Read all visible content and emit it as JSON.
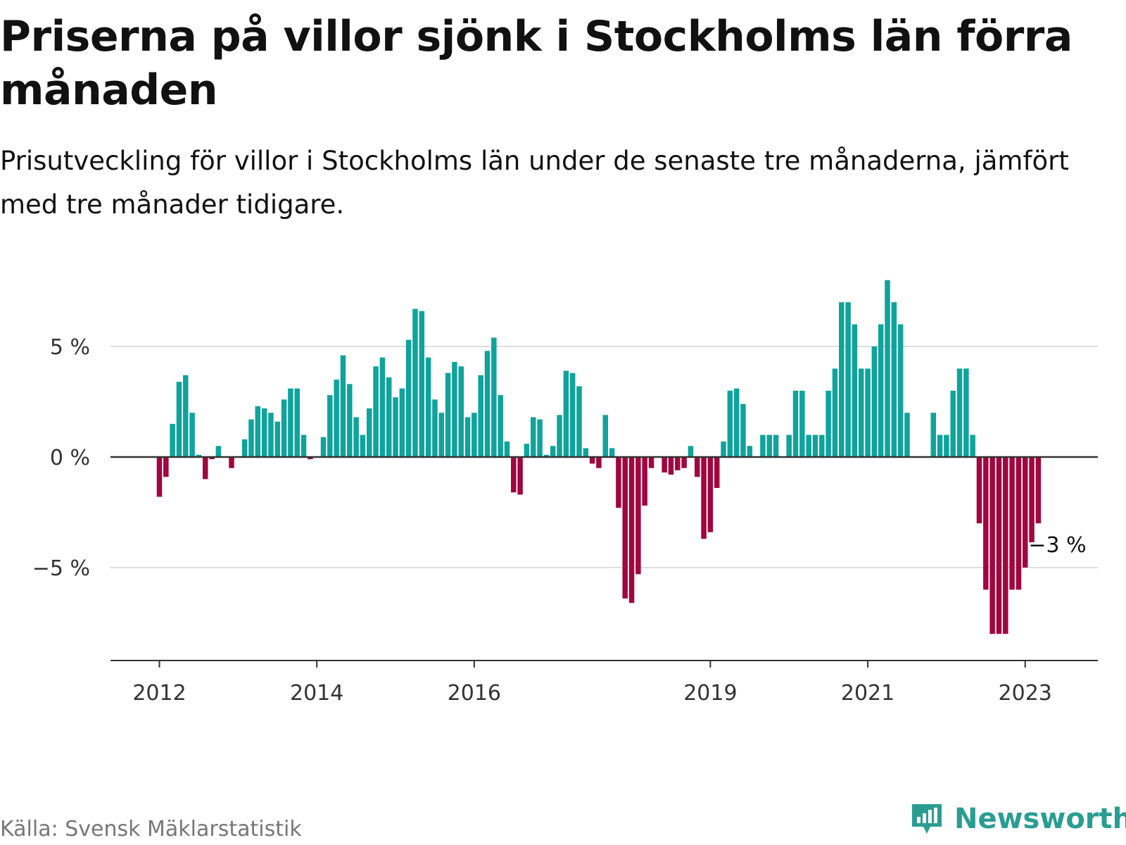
{
  "title": "Priserna på villor sjönk i Stockholms län förra månaden",
  "subtitle": "Prisutveckling för villor i Stockholms län under de senaste tre månaderna, jämfört med tre månader tidigare.",
  "source": "Källa: Svensk Mäklarstatistik",
  "brand": "Newsworthy",
  "colors": {
    "positive": "#0fa39b",
    "negative": "#a0063f",
    "grid": "#dddddd",
    "axis": "#333333",
    "brand": "#2a9d93"
  },
  "chart_data": {
    "type": "bar",
    "title": "Priserna på villor sjönk i Stockholms län förra månaden",
    "x_start": "2012-01",
    "xticks": [
      {
        "date": "2012-01",
        "label": "2012"
      },
      {
        "date": "2014-01",
        "label": "2014"
      },
      {
        "date": "2016-01",
        "label": "2016"
      },
      {
        "date": "2019-01",
        "label": "2019"
      },
      {
        "date": "2021-01",
        "label": "2021"
      },
      {
        "date": "2023-01",
        "label": "2023"
      }
    ],
    "yticks": [
      {
        "value": 5,
        "label": "5 %"
      },
      {
        "value": 0,
        "label": "0 %"
      },
      {
        "value": -5,
        "label": "−5 %"
      }
    ],
    "ylim": [
      -9.3,
      8.6
    ],
    "grid": true,
    "annotation": {
      "date": "2023-03",
      "value": -3,
      "label": "−3 %"
    },
    "values": [
      -1.8,
      -0.9,
      1.5,
      3.4,
      3.7,
      2.0,
      0.1,
      -1.0,
      -0.1,
      0.5,
      0.0,
      -0.5,
      0.0,
      0.8,
      1.7,
      2.3,
      2.2,
      2.0,
      1.6,
      2.6,
      3.1,
      3.1,
      1.0,
      -0.1,
      0.0,
      0.9,
      2.8,
      3.5,
      4.6,
      3.3,
      1.8,
      1.0,
      2.2,
      4.1,
      4.5,
      3.6,
      2.7,
      3.1,
      5.3,
      6.7,
      6.6,
      4.5,
      2.6,
      2.0,
      3.8,
      4.3,
      4.1,
      1.8,
      2.0,
      3.7,
      4.8,
      5.4,
      2.8,
      0.7,
      -1.6,
      -1.7,
      0.6,
      1.8,
      1.7,
      0.1,
      0.5,
      1.9,
      3.9,
      3.8,
      3.2,
      0.4,
      -0.3,
      -0.5,
      1.9,
      0.4,
      -2.3,
      -6.4,
      -6.6,
      -5.3,
      -2.2,
      -0.5,
      0.0,
      -0.7,
      -0.8,
      -0.6,
      -0.5,
      0.5,
      -0.9,
      -3.7,
      -3.4,
      -1.4,
      0.7,
      3.0,
      3.1,
      2.4,
      0.5,
      0.0,
      1.0,
      1.0,
      1.0,
      0.0,
      1.0,
      3.0,
      3.0,
      1.0,
      1.0,
      1.0,
      3.0,
      4.0,
      7.0,
      7.0,
      6.0,
      4.0,
      4.0,
      5.0,
      6.0,
      8.0,
      7.0,
      6.0,
      2.0,
      0.0,
      0.0,
      0.0,
      2.0,
      1.0,
      1.0,
      3.0,
      4.0,
      4.0,
      1.0,
      -3.0,
      -6.0,
      -8.0,
      -8.0,
      -8.0,
      -6.0,
      -6.0,
      -5.0,
      -4.0,
      -3.0
    ]
  }
}
